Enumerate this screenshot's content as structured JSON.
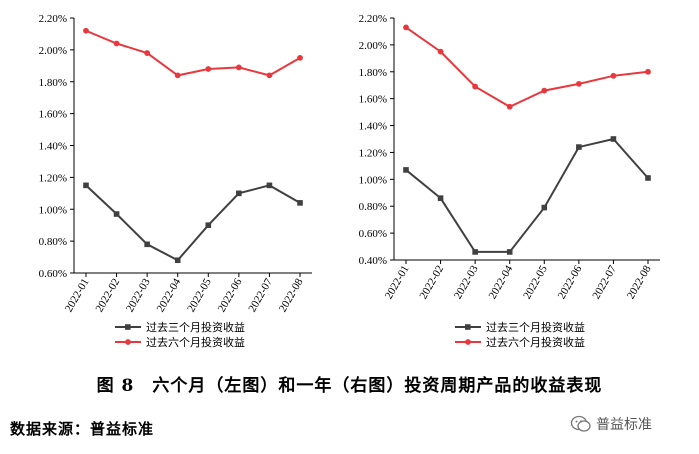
{
  "chart_data": [
    {
      "type": "line",
      "categories": [
        "2022-01",
        "2022-02",
        "2022-03",
        "2022-04",
        "2022-05",
        "2022-06",
        "2022-07",
        "2022-08"
      ],
      "series": [
        {
          "name": "过去三个月投资收益",
          "color": "#404040",
          "marker": "square",
          "values": [
            1.15,
            0.97,
            0.78,
            0.68,
            0.9,
            1.1,
            1.15,
            1.04
          ]
        },
        {
          "name": "过去六个月投资收益",
          "color": "#e8383d",
          "marker": "circle",
          "values": [
            2.12,
            2.04,
            1.98,
            1.84,
            1.88,
            1.89,
            1.84,
            1.95
          ]
        }
      ],
      "ylim": [
        0.6,
        2.2
      ],
      "yticks": [
        "0.60%",
        "0.80%",
        "1.00%",
        "1.20%",
        "1.40%",
        "1.60%",
        "1.80%",
        "2.00%",
        "2.20%"
      ],
      "legend": "bottom",
      "grid": false
    },
    {
      "type": "line",
      "categories": [
        "2022-01",
        "2022-02",
        "2022-03",
        "2022-04",
        "2022-05",
        "2022-06",
        "2022-07",
        "2022-08"
      ],
      "series": [
        {
          "name": "过去三个月投资收益",
          "color": "#404040",
          "marker": "square",
          "values": [
            1.07,
            0.86,
            0.46,
            0.46,
            0.79,
            1.24,
            1.3,
            1.01
          ]
        },
        {
          "name": "过去六个月投资收益",
          "color": "#e8383d",
          "marker": "circle",
          "values": [
            2.13,
            1.95,
            1.69,
            1.54,
            1.66,
            1.71,
            1.77,
            1.8
          ]
        }
      ],
      "ylim": [
        0.4,
        2.2
      ],
      "yticks": [
        "0.40%",
        "0.60%",
        "0.80%",
        "1.00%",
        "1.20%",
        "1.40%",
        "1.60%",
        "1.80%",
        "2.00%",
        "2.20%"
      ],
      "legend": "bottom",
      "grid": false
    }
  ],
  "caption": "图 8　六个月（左图）和一年（右图）投资周期产品的收益表现",
  "source": "数据来源：普益标准",
  "watermark": {
    "text": "普益标准",
    "icon": "wechat-icon"
  }
}
